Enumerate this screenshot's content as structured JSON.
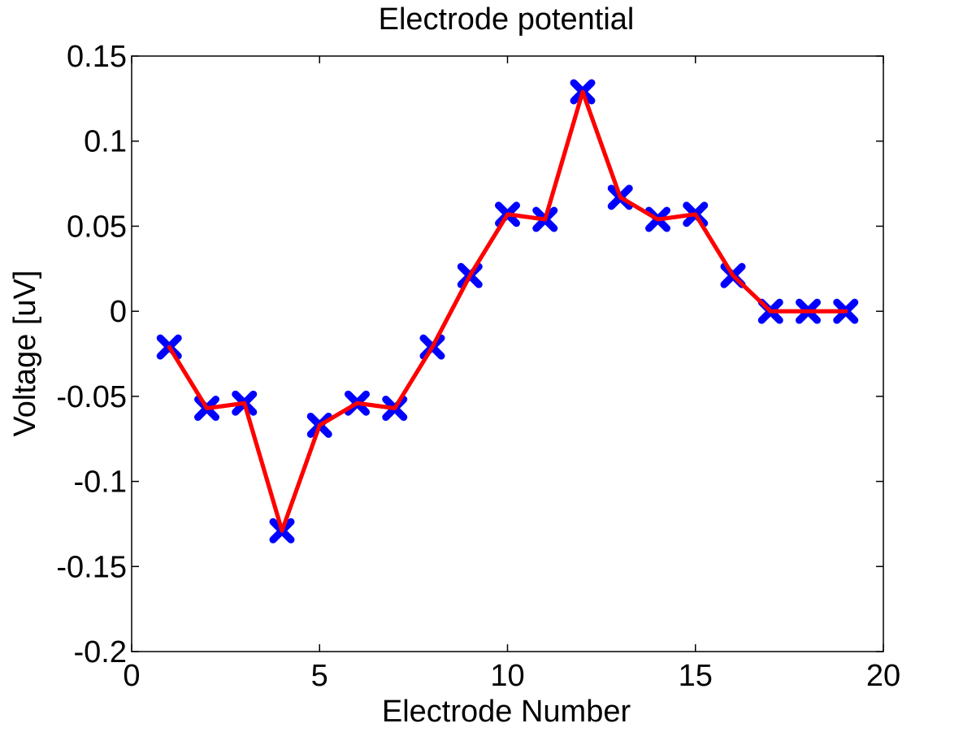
{
  "chart_data": {
    "type": "line",
    "title": "Electrode potential",
    "xlabel": "Electrode Number",
    "ylabel": "Voltage [uV]",
    "xlim": [
      0,
      20
    ],
    "ylim": [
      -0.2,
      0.15
    ],
    "xticks": [
      0,
      5,
      10,
      15,
      20
    ],
    "xtick_labels": [
      "0",
      "5",
      "10",
      "15",
      "20"
    ],
    "yticks": [
      -0.2,
      -0.15,
      -0.1,
      -0.05,
      0,
      0.05,
      0.1,
      0.15
    ],
    "ytick_labels": [
      "-0.2",
      "-0.15",
      "-0.1",
      "-0.05",
      "0",
      "0.05",
      "0.1",
      "0.15"
    ],
    "grid": false,
    "series": [
      {
        "line_color": "#ff0000",
        "marker_color": "#0000ff",
        "marker": "x",
        "x": [
          1,
          2,
          3,
          4,
          5,
          6,
          7,
          8,
          9,
          10,
          11,
          12,
          13,
          14,
          15,
          16,
          17,
          18,
          19
        ],
        "y": [
          -0.021,
          -0.057,
          -0.054,
          -0.129,
          -0.067,
          -0.054,
          -0.057,
          -0.021,
          0.021,
          0.057,
          0.054,
          0.129,
          0.067,
          0.054,
          0.057,
          0.021,
          0.0,
          0.0,
          0.0
        ]
      }
    ]
  }
}
